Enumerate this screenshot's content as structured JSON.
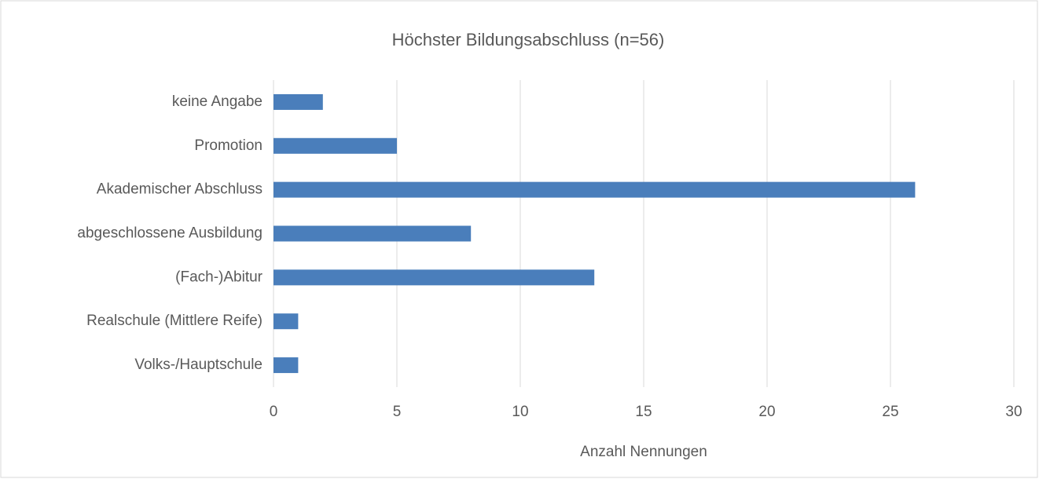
{
  "chart_data": {
    "type": "bar",
    "orientation": "horizontal",
    "title": "Höchster Bildungsabschluss (n=56)",
    "x_label": "Anzahl Nennungen",
    "categories": [
      "keine Angabe",
      "Promotion",
      "Akademischer Abschluss",
      "abgeschlossene Ausbildung",
      "(Fach-)Abitur",
      "Realschule (Mittlere Reife)",
      "Volks-/Hauptschule"
    ],
    "values": [
      2,
      5,
      26,
      8,
      13,
      1,
      1
    ],
    "color": "#4a7ebb",
    "xlim": [
      0,
      30
    ],
    "xticks": [
      0,
      5,
      10,
      15,
      20,
      25,
      30
    ],
    "grid": true
  }
}
